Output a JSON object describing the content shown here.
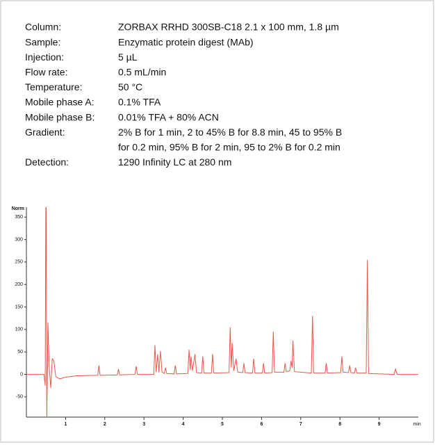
{
  "parameters": [
    {
      "label": "Column:",
      "lines": [
        "ZORBAX RRHD 300SB-C18 2.1 x 100 mm, 1.8 µm"
      ]
    },
    {
      "label": "Sample:",
      "lines": [
        "Enzymatic protein digest (MAb)"
      ]
    },
    {
      "label": "Injection:",
      "lines": [
        "5 µL"
      ]
    },
    {
      "label": "Flow rate:",
      "lines": [
        "0.5 mL/min"
      ]
    },
    {
      "label": "Temperature:",
      "lines": [
        "50 °C"
      ]
    },
    {
      "label": "Mobile phase A:",
      "lines": [
        "0.1% TFA"
      ]
    },
    {
      "label": "Mobile phase B:",
      "lines": [
        "0.01% TFA + 80% ACN"
      ]
    },
    {
      "label": "Gradient:",
      "lines": [
        "2% B for 1 min, 2 to 45% B for 8.8 min, 45 to 95% B",
        "for 0.2 min, 95% B for 2 min, 95 to 2% B for 0.2 min"
      ]
    },
    {
      "label": "Detection:",
      "lines": [
        "1290 Infinity LC at 280 nm"
      ]
    }
  ],
  "chart_data": {
    "type": "line",
    "y_label": "Norm",
    "x_label": "min",
    "x": [
      0,
      0.4,
      0.45,
      0.48,
      0.5,
      0.52,
      0.55,
      0.58,
      0.62,
      0.66,
      0.7,
      0.75,
      0.85,
      1.0,
      1.3,
      1.82,
      1.85,
      1.88,
      2.32,
      2.35,
      2.38,
      2.77,
      2.8,
      2.83,
      3.25,
      3.28,
      3.31,
      3.35,
      3.38,
      3.42,
      3.46,
      3.52,
      3.55,
      3.58,
      3.77,
      3.8,
      3.83,
      4.12,
      4.15,
      4.18,
      4.2,
      4.24,
      4.3,
      4.34,
      4.47,
      4.5,
      4.53,
      4.72,
      4.75,
      4.78,
      5.17,
      5.2,
      5.23,
      5.25,
      5.29,
      5.35,
      5.39,
      5.52,
      5.55,
      5.58,
      5.77,
      5.8,
      5.83,
      6.02,
      6.05,
      6.08,
      6.27,
      6.3,
      6.33,
      6.57,
      6.6,
      6.63,
      6.72,
      6.75,
      6.78,
      6.8,
      6.84,
      7.27,
      7.3,
      7.33,
      7.62,
      7.65,
      7.68,
      8.02,
      8.05,
      8.08,
      8.22,
      8.25,
      8.28,
      8.37,
      8.4,
      8.43,
      8.67,
      8.7,
      8.73,
      9.38,
      9.42,
      9.46,
      10
    ],
    "series": [
      {
        "color": "#e8574a",
        "values": [
          0,
          0,
          0,
          -25,
          500,
          -95,
          115,
          20,
          -30,
          35,
          30,
          -5,
          -10,
          -6,
          -3,
          -2,
          20,
          -2,
          -1,
          12,
          -1,
          0,
          18,
          0,
          0,
          65,
          5,
          45,
          5,
          52,
          5,
          2,
          15,
          2,
          1,
          20,
          1,
          2,
          55,
          10,
          40,
          8,
          45,
          4,
          3,
          40,
          3,
          3,
          45,
          3,
          4,
          105,
          15,
          70,
          8,
          35,
          5,
          4,
          25,
          4,
          3,
          35,
          3,
          3,
          25,
          3,
          4,
          95,
          5,
          5,
          25,
          6,
          8,
          30,
          15,
          75,
          6,
          3,
          130,
          3,
          3,
          25,
          3,
          4,
          40,
          5,
          4,
          20,
          4,
          3,
          15,
          3,
          3,
          255,
          2,
          0,
          12,
          0,
          0
        ]
      }
    ],
    "xlim": [
      0,
      10
    ],
    "xticks": [
      1,
      2,
      3,
      4,
      5,
      6,
      7,
      8,
      9
    ],
    "ylim": [
      -95,
      372
    ],
    "yticks": [
      -50,
      0,
      50,
      100,
      150,
      200,
      250,
      300,
      350
    ]
  }
}
